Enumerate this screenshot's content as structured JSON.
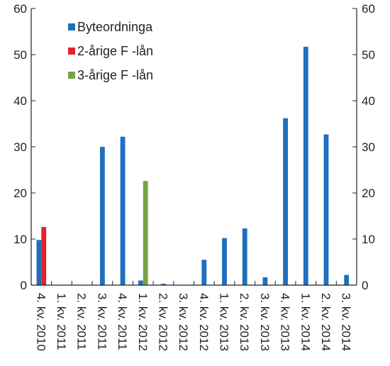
{
  "chart_data": {
    "type": "bar",
    "categories": [
      "4. kv. 2010",
      "1. kv. 2011",
      "2. kv. 2011",
      "3. kv. 2011",
      "4. kv. 2011",
      "1. kv. 2012",
      "2. kv. 2012",
      "3. kv. 2012",
      "4. kv. 2012",
      "1. kv. 2013",
      "2. kv. 2013",
      "3. kv. 2013",
      "4. kv. 2013",
      "1. kv. 2014",
      "2. kv. 2014",
      "3. kv. 2014"
    ],
    "series": [
      {
        "name": "Byteordninga",
        "color": "#1f6fbf",
        "values": [
          9.8,
          0,
          0,
          30,
          32.2,
          1,
          0.3,
          0,
          5.5,
          10.2,
          12.3,
          1.7,
          36.2,
          51.7,
          32.7,
          2.2
        ]
      },
      {
        "name": "2-årige F -lån",
        "color": "#e2232b",
        "values": [
          12.6,
          null,
          null,
          null,
          null,
          null,
          null,
          null,
          null,
          null,
          null,
          null,
          null,
          null,
          null,
          null
        ]
      },
      {
        "name": "3-årige F -lån",
        "color": "#77a346",
        "values": [
          null,
          null,
          null,
          null,
          null,
          22.6,
          null,
          null,
          null,
          null,
          null,
          null,
          null,
          null,
          null,
          null
        ]
      }
    ],
    "ylim": [
      0,
      60
    ],
    "yticks": [
      "0",
      "10",
      "20",
      "30",
      "40",
      "50",
      "60"
    ],
    "y_axis_left": true,
    "y_axis_right": true,
    "grid": false,
    "legend_position": "top-left",
    "title": "",
    "xlabel": "",
    "ylabel": ""
  }
}
